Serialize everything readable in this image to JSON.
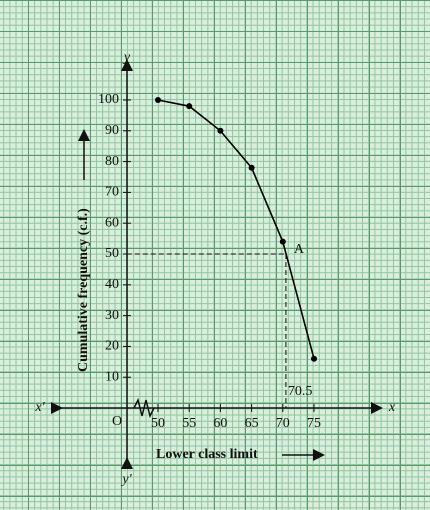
{
  "chart_data": {
    "type": "line",
    "x": [
      50,
      55,
      60,
      65,
      70,
      75
    ],
    "series": [
      {
        "color": "#000000",
        "values": [
          100,
          98,
          90,
          78,
          54,
          16
        ]
      }
    ],
    "xlim": [
      45,
      80
    ],
    "xticks": [
      50,
      55,
      60,
      65,
      70,
      75
    ],
    "ylim": [
      0,
      100
    ],
    "yticks": [
      10,
      20,
      30,
      40,
      50,
      60,
      70,
      80,
      90,
      100
    ],
    "xlabel": "Lower class limit",
    "ylabel": "Cumulative frequency (c.f.)",
    "origin_label": "O",
    "x_axis_label": "x",
    "x_axis_neg_label": "x'",
    "y_axis_label": "y",
    "y_axis_neg_label": "y'",
    "annotation": {
      "label": "A",
      "x": 70.5,
      "y": 50
    },
    "x_annotation": {
      "value": 70.5,
      "label": "70.5"
    },
    "grid": true
  }
}
